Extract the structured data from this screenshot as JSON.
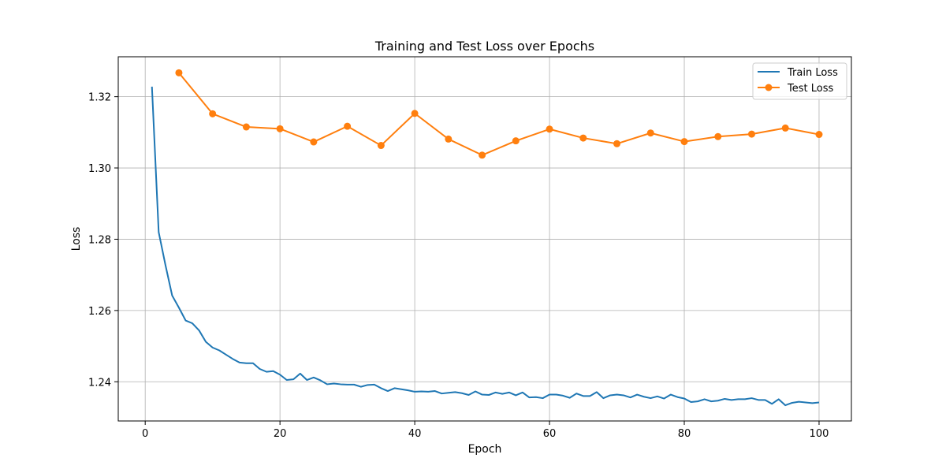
{
  "chart_data": {
    "type": "line",
    "title": "Training and Test Loss over Epochs",
    "xlabel": "Epoch",
    "ylabel": "Loss",
    "xlim": [
      -4,
      104.8
    ],
    "ylim": [
      1.229,
      1.3312
    ],
    "xticks": [
      0,
      20,
      40,
      60,
      80,
      100
    ],
    "yticks": [
      1.24,
      1.26,
      1.28,
      1.3,
      1.32
    ],
    "grid": true,
    "legend_position": "top-right",
    "series": [
      {
        "name": "Train Loss",
        "color": "#1f77b4",
        "marker": false,
        "x": [
          1,
          2,
          3,
          4,
          5,
          6,
          7,
          8,
          9,
          10,
          11,
          12,
          13,
          14,
          15,
          16,
          17,
          18,
          19,
          20,
          21,
          22,
          23,
          24,
          25,
          26,
          27,
          28,
          29,
          30,
          31,
          32,
          33,
          34,
          35,
          36,
          37,
          38,
          39,
          40,
          41,
          42,
          43,
          44,
          45,
          46,
          47,
          48,
          49,
          50,
          51,
          52,
          53,
          54,
          55,
          56,
          57,
          58,
          59,
          60,
          61,
          62,
          63,
          64,
          65,
          66,
          67,
          68,
          69,
          70,
          71,
          72,
          73,
          74,
          75,
          76,
          77,
          78,
          79,
          80,
          81,
          82,
          83,
          84,
          85,
          86,
          87,
          88,
          89,
          90,
          91,
          92,
          93,
          94,
          95,
          96,
          97,
          98,
          99,
          100
        ],
        "values": [
          1.3228,
          1.282,
          1.2728,
          1.2642,
          1.2608,
          1.2572,
          1.2564,
          1.2544,
          1.2512,
          1.2496,
          1.2488,
          1.2476,
          1.2464,
          1.2454,
          1.2452,
          1.2452,
          1.2436,
          1.2428,
          1.243,
          1.242,
          1.2405,
          1.2407,
          1.2423,
          1.2405,
          1.2412,
          1.2404,
          1.2393,
          1.2395,
          1.2393,
          1.2392,
          1.2392,
          1.2386,
          1.2391,
          1.2392,
          1.2382,
          1.2374,
          1.2382,
          1.2379,
          1.2376,
          1.2372,
          1.2373,
          1.2372,
          1.2374,
          1.2367,
          1.2369,
          1.2371,
          1.2368,
          1.2363,
          1.2373,
          1.2364,
          1.2363,
          1.237,
          1.2366,
          1.237,
          1.2362,
          1.237,
          1.2356,
          1.2357,
          1.2354,
          1.2364,
          1.2364,
          1.2361,
          1.2355,
          1.2367,
          1.236,
          1.236,
          1.2371,
          1.2354,
          1.2362,
          1.2364,
          1.2362,
          1.2356,
          1.2364,
          1.2358,
          1.2354,
          1.2359,
          1.2353,
          1.2364,
          1.2357,
          1.2353,
          1.2343,
          1.2345,
          1.2351,
          1.2345,
          1.2347,
          1.2352,
          1.2349,
          1.2351,
          1.2351,
          1.2354,
          1.2349,
          1.2349,
          1.2338,
          1.2351,
          1.2334,
          1.2341,
          1.2344,
          1.2342,
          1.234,
          1.2342
        ]
      },
      {
        "name": "Test Loss",
        "color": "#ff7f0e",
        "marker": true,
        "x": [
          5,
          10,
          15,
          20,
          25,
          30,
          35,
          40,
          45,
          50,
          55,
          60,
          65,
          70,
          75,
          80,
          85,
          90,
          95,
          100
        ],
        "values": [
          1.3267,
          1.3152,
          1.3115,
          1.311,
          1.3073,
          1.3117,
          1.3063,
          1.3153,
          1.3081,
          1.3036,
          1.3076,
          1.3109,
          1.3084,
          1.3068,
          1.3098,
          1.3074,
          1.3088,
          1.3095,
          1.3112,
          1.3094
        ]
      }
    ]
  }
}
